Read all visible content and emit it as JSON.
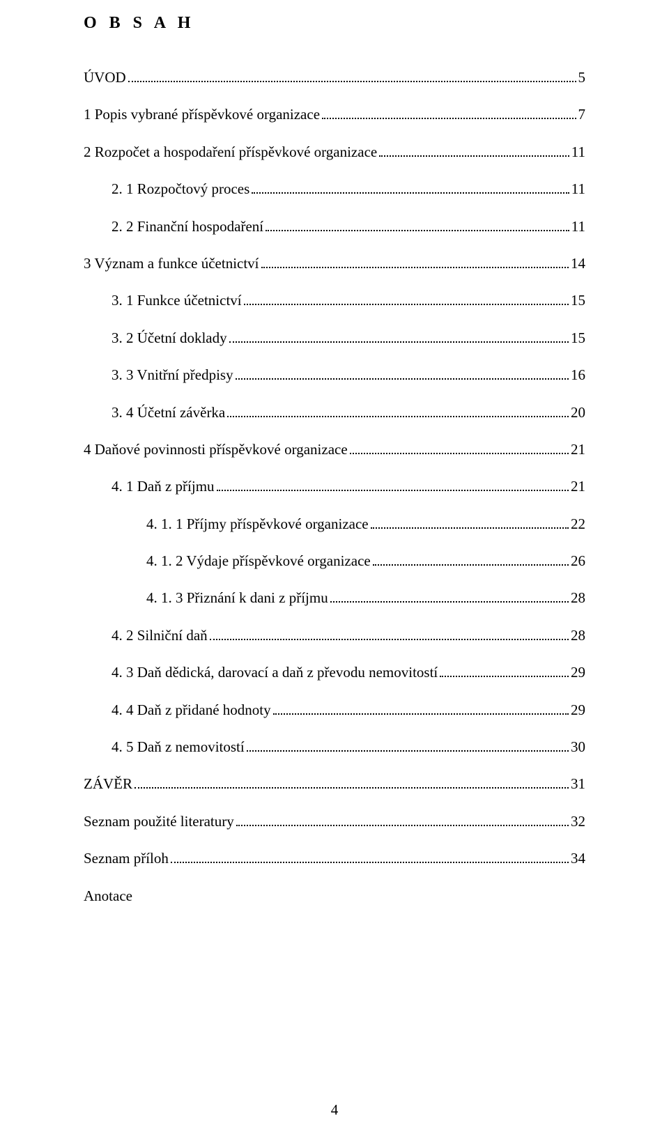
{
  "title": "O B S A H",
  "entries": [
    {
      "label": "ÚVOD",
      "page": "5",
      "indent": 0
    },
    {
      "label": "1  Popis vybrané příspěvkové organizace",
      "page": "7",
      "indent": 0
    },
    {
      "label": "2  Rozpočet a hospodaření příspěvkové organizace",
      "page": "11",
      "indent": 0
    },
    {
      "label": "2. 1 Rozpočtový proces",
      "page": "11",
      "indent": 1
    },
    {
      "label": "2. 2 Finanční hospodaření",
      "page": "11",
      "indent": 1
    },
    {
      "label": "3  Význam a funkce účetnictví",
      "page": "14",
      "indent": 0
    },
    {
      "label": "3. 1 Funkce účetnictví",
      "page": "15",
      "indent": 1
    },
    {
      "label": "3. 2  Účetní doklady",
      "page": "15",
      "indent": 1
    },
    {
      "label": "3. 3 Vnitřní předpisy",
      "page": "16",
      "indent": 1
    },
    {
      "label": "3. 4 Účetní závěrka",
      "page": "20",
      "indent": 1
    },
    {
      "label": "4  Daňové povinnosti příspěvkové organizace",
      "page": "21",
      "indent": 0
    },
    {
      "label": "4. 1 Daň z příjmu",
      "page": "21",
      "indent": 1
    },
    {
      "label": "4. 1. 1 Příjmy příspěvkové organizace",
      "page": "22",
      "indent": 2
    },
    {
      "label": "4. 1. 2 Výdaje příspěvkové organizace",
      "page": "26",
      "indent": 2
    },
    {
      "label": "4. 1. 3 Přiznání k dani z příjmu",
      "page": "28",
      "indent": 2
    },
    {
      "label": "4. 2 Silniční daň",
      "page": "28",
      "indent": 1
    },
    {
      "label": "4. 3 Daň dědická, darovací a daň z převodu nemovitostí",
      "page": "29",
      "indent": 1
    },
    {
      "label": "4. 4 Daň z přidané hodnoty",
      "page": "29",
      "indent": 1
    },
    {
      "label": "4. 5  Daň z nemovitostí",
      "page": "30",
      "indent": 1
    },
    {
      "label": "ZÁVĚR",
      "page": "31",
      "indent": 0
    },
    {
      "label": "Seznam použité literatury",
      "page": "32",
      "indent": 0
    },
    {
      "label": "Seznam příloh",
      "page": "34",
      "indent": 0
    },
    {
      "label": "Anotace",
      "page": "",
      "indent": 0
    }
  ],
  "page_number": "4"
}
